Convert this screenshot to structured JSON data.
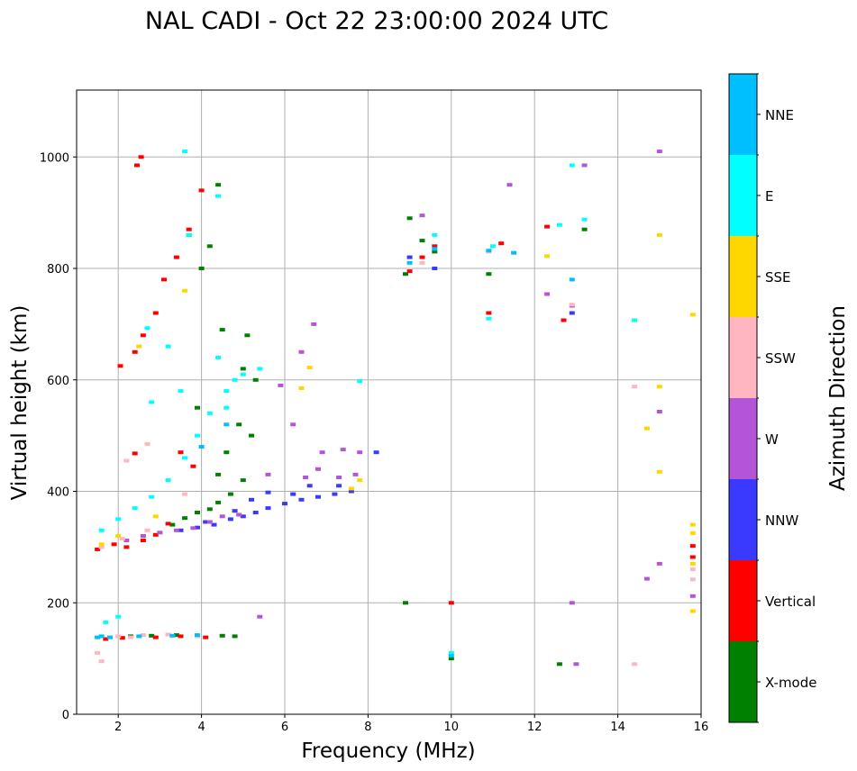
{
  "chart_data": {
    "type": "scatter",
    "title": "NAL CADI - Oct 22 23:00:00 2024 UTC",
    "xlabel": "Frequency (MHz)",
    "ylabel": "Virtual height (km)",
    "xlim": [
      1,
      16
    ],
    "ylim": [
      0,
      1120
    ],
    "xticks": [
      2,
      4,
      6,
      8,
      10,
      12,
      14,
      16
    ],
    "yticks": [
      0,
      200,
      400,
      600,
      800,
      1000
    ],
    "grid": true,
    "colorbar": {
      "label": "Azimuth Direction",
      "categories": [
        {
          "name": "X-mode",
          "color": "#008000"
        },
        {
          "name": "Vertical",
          "color": "#ff0000"
        },
        {
          "name": "NNW",
          "color": "#3a3aff"
        },
        {
          "name": "W",
          "color": "#b455d8"
        },
        {
          "name": "SSW",
          "color": "#ffb6c1"
        },
        {
          "name": "SSE",
          "color": "#ffd700"
        },
        {
          "name": "E",
          "color": "#00ffff"
        },
        {
          "name": "NNE",
          "color": "#00bfff"
        }
      ]
    },
    "series": [
      {
        "name": "X-mode",
        "points": [
          [
            2.3,
            140
          ],
          [
            2.8,
            141
          ],
          [
            3.4,
            142
          ],
          [
            3.9,
            141
          ],
          [
            4.5,
            141
          ],
          [
            4.8,
            140
          ],
          [
            3.3,
            340
          ],
          [
            3.6,
            352
          ],
          [
            3.9,
            362
          ],
          [
            4.2,
            368
          ],
          [
            4.4,
            380
          ],
          [
            4.7,
            395
          ],
          [
            5.0,
            420
          ],
          [
            4.0,
            800
          ],
          [
            4.2,
            840
          ],
          [
            3.7,
            860
          ],
          [
            4.4,
            950
          ],
          [
            8.9,
            790
          ],
          [
            9.0,
            890
          ],
          [
            9.3,
            850
          ],
          [
            9.6,
            830
          ],
          [
            10.9,
            790
          ],
          [
            13.2,
            870
          ],
          [
            12.6,
            90
          ],
          [
            8.9,
            200
          ],
          [
            10.0,
            100
          ],
          [
            4.5,
            690
          ],
          [
            5.1,
            680
          ],
          [
            5.3,
            600
          ],
          [
            4.9,
            520
          ],
          [
            5.2,
            500
          ],
          [
            5.0,
            620
          ],
          [
            4.6,
            470
          ],
          [
            4.4,
            430
          ],
          [
            3.9,
            550
          ]
        ]
      },
      {
        "name": "Vertical",
        "points": [
          [
            1.5,
            296
          ],
          [
            1.9,
            305
          ],
          [
            2.2,
            300
          ],
          [
            2.6,
            312
          ],
          [
            2.9,
            322
          ],
          [
            3.2,
            342
          ],
          [
            2.05,
            625
          ],
          [
            2.4,
            650
          ],
          [
            2.6,
            680
          ],
          [
            2.9,
            720
          ],
          [
            3.1,
            780
          ],
          [
            3.4,
            820
          ],
          [
            3.7,
            870
          ],
          [
            4.0,
            940
          ],
          [
            2.45,
            985
          ],
          [
            2.55,
            1000
          ],
          [
            1.7,
            135
          ],
          [
            2.1,
            137
          ],
          [
            2.9,
            138
          ],
          [
            3.5,
            140
          ],
          [
            4.1,
            138
          ],
          [
            9.0,
            795
          ],
          [
            9.3,
            820
          ],
          [
            9.6,
            840
          ],
          [
            10.9,
            720
          ],
          [
            11.2,
            845
          ],
          [
            12.3,
            875
          ],
          [
            12.7,
            707
          ],
          [
            15.8,
            302
          ],
          [
            15.8,
            282
          ],
          [
            2.4,
            468
          ],
          [
            10.0,
            200
          ],
          [
            3.5,
            470
          ],
          [
            3.8,
            445
          ]
        ]
      },
      {
        "name": "NNW",
        "points": [
          [
            3.5,
            330
          ],
          [
            3.9,
            335
          ],
          [
            4.3,
            340
          ],
          [
            4.7,
            350
          ],
          [
            5.0,
            355
          ],
          [
            5.3,
            362
          ],
          [
            5.6,
            370
          ],
          [
            6.0,
            378
          ],
          [
            6.4,
            385
          ],
          [
            6.8,
            390
          ],
          [
            7.2,
            395
          ],
          [
            7.6,
            400
          ],
          [
            4.1,
            345
          ],
          [
            4.8,
            365
          ],
          [
            5.2,
            385
          ],
          [
            5.6,
            398
          ],
          [
            6.2,
            395
          ],
          [
            6.6,
            410
          ],
          [
            7.3,
            410
          ],
          [
            8.2,
            470
          ],
          [
            9.0,
            820
          ],
          [
            9.6,
            800
          ],
          [
            12.9,
            720
          ]
        ]
      },
      {
        "name": "W",
        "points": [
          [
            2.2,
            312
          ],
          [
            2.6,
            320
          ],
          [
            3.0,
            326
          ],
          [
            3.4,
            330
          ],
          [
            3.8,
            334
          ],
          [
            4.2,
            345
          ],
          [
            4.5,
            355
          ],
          [
            4.9,
            358
          ],
          [
            5.6,
            430
          ],
          [
            6.5,
            425
          ],
          [
            6.8,
            440
          ],
          [
            7.3,
            425
          ],
          [
            7.7,
            430
          ],
          [
            6.9,
            470
          ],
          [
            7.4,
            475
          ],
          [
            6.4,
            650
          ],
          [
            6.7,
            700
          ],
          [
            9.3,
            895
          ],
          [
            11.4,
            950
          ],
          [
            12.3,
            754
          ],
          [
            12.9,
            733
          ],
          [
            13.2,
            985
          ],
          [
            15.0,
            1010
          ],
          [
            15.0,
            270
          ],
          [
            15.0,
            543
          ],
          [
            14.7,
            243
          ],
          [
            15.8,
            212
          ],
          [
            12.9,
            200
          ],
          [
            13.0,
            90
          ],
          [
            5.4,
            175
          ],
          [
            5.9,
            590
          ],
          [
            6.2,
            520
          ],
          [
            7.8,
            470
          ]
        ]
      },
      {
        "name": "SSW",
        "points": [
          [
            1.5,
            110
          ],
          [
            1.6,
            95
          ],
          [
            2.0,
            140
          ],
          [
            2.3,
            138
          ],
          [
            2.6,
            142
          ],
          [
            3.2,
            143
          ],
          [
            3.9,
            140
          ],
          [
            1.6,
            300
          ],
          [
            2.1,
            315
          ],
          [
            2.7,
            330
          ],
          [
            2.7,
            485
          ],
          [
            2.2,
            455
          ],
          [
            9.3,
            810
          ],
          [
            10.9,
            830
          ],
          [
            12.9,
            735
          ],
          [
            14.4,
            588
          ],
          [
            14.4,
            90
          ],
          [
            15.8,
            242
          ],
          [
            15.8,
            260
          ],
          [
            3.6,
            395
          ]
        ]
      },
      {
        "name": "SSE",
        "points": [
          [
            1.6,
            305
          ],
          [
            2.0,
            320
          ],
          [
            2.5,
            660
          ],
          [
            3.6,
            760
          ],
          [
            6.6,
            622
          ],
          [
            6.4,
            585
          ],
          [
            7.8,
            420
          ],
          [
            7.6,
            405
          ],
          [
            12.3,
            822
          ],
          [
            15.0,
            860
          ],
          [
            14.7,
            513
          ],
          [
            15.0,
            588
          ],
          [
            15.0,
            435
          ],
          [
            15.8,
            340
          ],
          [
            15.8,
            325
          ],
          [
            15.8,
            270
          ],
          [
            15.8,
            185
          ],
          [
            15.8,
            717
          ],
          [
            2.9,
            355
          ]
        ]
      },
      {
        "name": "E",
        "points": [
          [
            1.6,
            330
          ],
          [
            2.0,
            350
          ],
          [
            2.4,
            370
          ],
          [
            2.8,
            390
          ],
          [
            3.2,
            420
          ],
          [
            3.6,
            460
          ],
          [
            3.9,
            500
          ],
          [
            4.2,
            540
          ],
          [
            4.6,
            580
          ],
          [
            5.0,
            610
          ],
          [
            5.4,
            620
          ],
          [
            1.7,
            165
          ],
          [
            2.0,
            175
          ],
          [
            2.7,
            693
          ],
          [
            3.6,
            1010
          ],
          [
            3.7,
            860
          ],
          [
            4.4,
            930
          ],
          [
            9.6,
            860
          ],
          [
            10.9,
            710
          ],
          [
            11.0,
            840
          ],
          [
            12.6,
            878
          ],
          [
            12.9,
            985
          ],
          [
            13.2,
            888
          ],
          [
            14.4,
            707
          ],
          [
            10.0,
            110
          ],
          [
            4.4,
            640
          ],
          [
            4.6,
            550
          ],
          [
            4.8,
            600
          ],
          [
            3.5,
            580
          ],
          [
            7.8,
            598
          ],
          [
            3.2,
            660
          ],
          [
            2.8,
            560
          ]
        ]
      },
      {
        "name": "NNE",
        "points": [
          [
            1.5,
            138
          ],
          [
            1.6,
            140
          ],
          [
            1.8,
            138
          ],
          [
            2.5,
            140
          ],
          [
            3.3,
            141
          ],
          [
            3.9,
            142
          ],
          [
            9.0,
            810
          ],
          [
            9.6,
            835
          ],
          [
            10.9,
            832
          ],
          [
            11.5,
            828
          ],
          [
            12.9,
            780
          ],
          [
            10.0,
            105
          ],
          [
            4.0,
            480
          ],
          [
            4.6,
            520
          ]
        ]
      }
    ]
  }
}
